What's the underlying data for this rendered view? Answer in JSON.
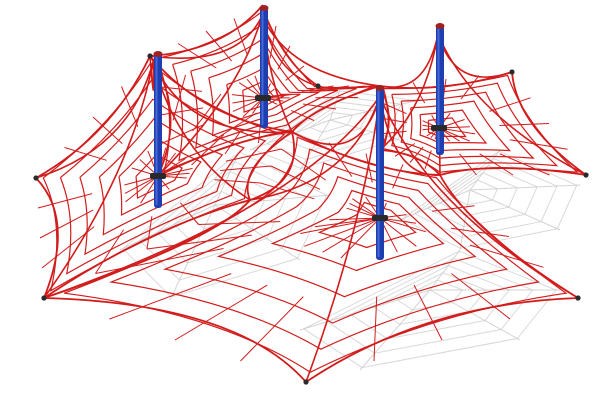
{
  "image": {
    "subject": "rope-net-climbing-structure",
    "background_color": "#ffffff",
    "rope_color": "#d21c1c",
    "pole_color": "#1f3fb0",
    "pole_highlight_color": "#4f74e0",
    "pole_collar_color": "#2a2a2a",
    "shadow_color": "#c9c9c9",
    "anchor_color": "#2b2b2b",
    "pole_count": 4,
    "anchor_count": 8
  }
}
